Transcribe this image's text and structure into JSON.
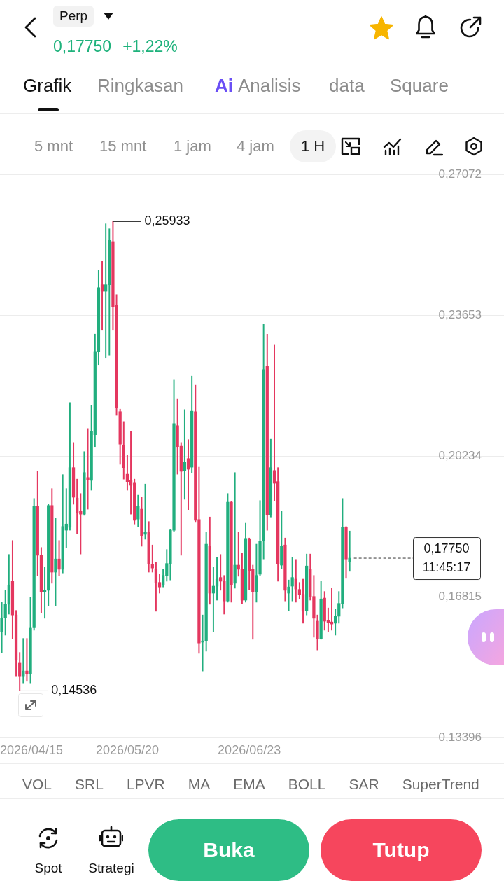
{
  "chart_data": {
    "type": "candlestick",
    "x": [
      "2026-04-15",
      "2026-04-16",
      "2026-04-17",
      "2026-04-18",
      "2026-04-19",
      "2026-04-20",
      "2026-04-21",
      "2026-04-22",
      "2026-04-23",
      "2026-04-24",
      "2026-04-25",
      "2026-04-26",
      "2026-04-27",
      "2026-04-28",
      "2026-04-29",
      "2026-04-30",
      "2026-05-01",
      "2026-05-02",
      "2026-05-03",
      "2026-05-04",
      "2026-05-05",
      "2026-05-06",
      "2026-05-07",
      "2026-05-08",
      "2026-05-09",
      "2026-05-10",
      "2026-05-11",
      "2026-05-12",
      "2026-05-13",
      "2026-05-14",
      "2026-05-15",
      "2026-05-16",
      "2026-05-17",
      "2026-05-18",
      "2026-05-19",
      "2026-05-20",
      "2026-05-21",
      "2026-05-22",
      "2026-05-23",
      "2026-05-24",
      "2026-05-25",
      "2026-05-26",
      "2026-05-27",
      "2026-05-28",
      "2026-05-29",
      "2026-05-30",
      "2026-05-31",
      "2026-06-01",
      "2026-06-02",
      "2026-06-03",
      "2026-06-04",
      "2026-06-05",
      "2026-06-06",
      "2026-06-07",
      "2026-06-08",
      "2026-06-09",
      "2026-06-10",
      "2026-06-11",
      "2026-06-12",
      "2026-06-13",
      "2026-06-14",
      "2026-06-15",
      "2026-06-16",
      "2026-06-17",
      "2026-06-18",
      "2026-06-19",
      "2026-06-20",
      "2026-06-21",
      "2026-06-22",
      "2026-06-23",
      "2026-06-24",
      "2026-06-25",
      "2026-06-26",
      "2026-06-27",
      "2026-06-28",
      "2026-06-29",
      "2026-06-30",
      "2026-07-01",
      "2026-07-02",
      "2026-07-03",
      "2026-07-04",
      "2026-07-05",
      "2026-07-06",
      "2026-07-07",
      "2026-07-08",
      "2026-07-09",
      "2026-07-10",
      "2026-07-11",
      "2026-07-12",
      "2026-07-13",
      "2026-07-14",
      "2026-07-15",
      "2026-07-16",
      "2026-07-17",
      "2026-07-18",
      "2026-07-19",
      "2026-07-20",
      "2026-07-21"
    ],
    "ohlc": [
      [
        0.1597,
        0.1668,
        0.1546,
        0.163
      ],
      [
        0.163,
        0.1697,
        0.1588,
        0.1663
      ],
      [
        0.1663,
        0.1784,
        0.1639,
        0.171
      ],
      [
        0.1719,
        0.1818,
        0.158,
        0.1637
      ],
      [
        0.1637,
        0.1648,
        0.1489,
        0.1527
      ],
      [
        0.152,
        0.1546,
        0.14536,
        0.1489
      ],
      [
        0.1489,
        0.158,
        0.1472,
        0.1501
      ],
      [
        0.1501,
        0.158,
        0.1476,
        0.1494
      ],
      [
        0.1494,
        0.168,
        0.1472,
        0.1605
      ],
      [
        0.1606,
        0.192,
        0.16,
        0.1901
      ],
      [
        0.1901,
        0.1986,
        0.1733,
        0.1782
      ],
      [
        0.1782,
        0.1801,
        0.1642,
        0.1694
      ],
      [
        0.1694,
        0.1753,
        0.1629,
        0.1697
      ],
      [
        0.1697,
        0.1906,
        0.1659,
        0.1903
      ],
      [
        0.1903,
        0.1944,
        0.1714,
        0.1741
      ],
      [
        0.1741,
        0.1872,
        0.1659,
        0.1773
      ],
      [
        0.1773,
        0.1818,
        0.1733,
        0.1748
      ],
      [
        0.1748,
        0.1978,
        0.1739,
        0.1852
      ],
      [
        0.1843,
        0.1944,
        0.1801,
        0.1858
      ],
      [
        0.185,
        0.2153,
        0.1843,
        0.1995
      ],
      [
        0.1995,
        0.2056,
        0.1906,
        0.1923
      ],
      [
        0.1921,
        0.1967,
        0.1835,
        0.1886
      ],
      [
        0.1889,
        0.1932,
        0.1785,
        0.1882
      ],
      [
        0.1882,
        0.2034,
        0.1879,
        0.1983
      ],
      [
        0.1971,
        0.209,
        0.1894,
        0.1966
      ],
      [
        0.1964,
        0.2146,
        0.194,
        0.2083
      ],
      [
        0.2075,
        0.2319,
        0.2046,
        0.2277
      ],
      [
        0.2277,
        0.2474,
        0.2245,
        0.2432
      ],
      [
        0.2439,
        0.2496,
        0.233,
        0.2423
      ],
      [
        0.2423,
        0.2587,
        0.2262,
        0.2439
      ],
      [
        0.2439,
        0.2575,
        0.2268,
        0.2547
      ],
      [
        0.2544,
        0.25933,
        0.233,
        0.2386
      ],
      [
        0.2389,
        0.2415,
        0.2122,
        0.2141
      ],
      [
        0.2131,
        0.2137,
        0.2003,
        0.2052
      ],
      [
        0.2049,
        0.2107,
        0.1967,
        0.1995
      ],
      [
        0.1979,
        0.2025,
        0.194,
        0.1961
      ],
      [
        0.1964,
        0.2083,
        0.1882,
        0.1952
      ],
      [
        0.1959,
        0.1967,
        0.1858,
        0.1867
      ],
      [
        0.187,
        0.1928,
        0.1852,
        0.1901
      ],
      [
        0.1894,
        0.1923,
        0.1804,
        0.183
      ],
      [
        0.1833,
        0.1955,
        0.1821,
        0.1838
      ],
      [
        0.1838,
        0.1864,
        0.1741,
        0.1762
      ],
      [
        0.176,
        0.1807,
        0.1741,
        0.1751
      ],
      [
        0.1749,
        0.1765,
        0.1646,
        0.1716
      ],
      [
        0.1716,
        0.1736,
        0.169,
        0.1705
      ],
      [
        0.171,
        0.1749,
        0.1705,
        0.1733
      ],
      [
        0.1733,
        0.1796,
        0.1719,
        0.1762
      ],
      [
        0.1762,
        0.1845,
        0.1722,
        0.1843
      ],
      [
        0.1843,
        0.2209,
        0.184,
        0.2102
      ],
      [
        0.2097,
        0.2161,
        0.1979,
        0.2046
      ],
      [
        0.2047,
        0.2056,
        0.1782,
        0.1986
      ],
      [
        0.1988,
        0.2136,
        0.1918,
        0.2008
      ],
      [
        0.2017,
        0.2063,
        0.1893,
        0.1991
      ],
      [
        0.1996,
        0.2217,
        0.1983,
        0.2132
      ],
      [
        0.2131,
        0.2195,
        0.1862,
        0.1867
      ],
      [
        0.1869,
        0.1996,
        0.1544,
        0.1569
      ],
      [
        0.1571,
        0.1637,
        0.1501,
        0.1574
      ],
      [
        0.1574,
        0.1838,
        0.1549,
        0.1809
      ],
      [
        0.1805,
        0.1875,
        0.1663,
        0.169
      ],
      [
        0.169,
        0.1753,
        0.1597,
        0.1707
      ],
      [
        0.1707,
        0.1777,
        0.1673,
        0.1724
      ],
      [
        0.1728,
        0.1784,
        0.1697,
        0.1719
      ],
      [
        0.1719,
        0.1733,
        0.1639,
        0.1671
      ],
      [
        0.1671,
        0.1932,
        0.1668,
        0.1911
      ],
      [
        0.1911,
        0.1914,
        0.1668,
        0.171
      ],
      [
        0.1714,
        0.1983,
        0.1702,
        0.1758
      ],
      [
        0.1758,
        0.1838,
        0.1731,
        0.1748
      ],
      [
        0.1748,
        0.1787,
        0.1665,
        0.1673
      ],
      [
        0.1673,
        0.186,
        0.1668,
        0.1823
      ],
      [
        0.1821,
        0.1824,
        0.1699,
        0.1745
      ],
      [
        0.1748,
        0.1758,
        0.1578,
        0.1694
      ],
      [
        0.1694,
        0.1809,
        0.1668,
        0.1733
      ],
      [
        0.1736,
        0.1915,
        0.1733,
        0.1816
      ],
      [
        0.1818,
        0.2343,
        0.1773,
        0.2233
      ],
      [
        0.2241,
        0.2319,
        0.1843,
        0.1881
      ],
      [
        0.1881,
        0.2064,
        0.1875,
        0.1995
      ],
      [
        0.1988,
        0.2294,
        0.1915,
        0.1957
      ],
      [
        0.1961,
        0.1995,
        0.1719,
        0.1762
      ],
      [
        0.1758,
        0.1889,
        0.1749,
        0.1804
      ],
      [
        0.1807,
        0.1824,
        0.1671,
        0.1697
      ],
      [
        0.169,
        0.1722,
        0.1648,
        0.1705
      ],
      [
        0.1707,
        0.1777,
        0.1671,
        0.1728
      ],
      [
        0.1724,
        0.1772,
        0.1668,
        0.17
      ],
      [
        0.1699,
        0.1716,
        0.1676,
        0.1687
      ],
      [
        0.1687,
        0.1724,
        0.1617,
        0.1646
      ],
      [
        0.1648,
        0.1785,
        0.1637,
        0.1756
      ],
      [
        0.1749,
        0.1785,
        0.1673,
        0.1682
      ],
      [
        0.1682,
        0.1733,
        0.1583,
        0.1629
      ],
      [
        0.1622,
        0.1637,
        0.1552,
        0.158
      ],
      [
        0.158,
        0.1719,
        0.1578,
        0.1676
      ],
      [
        0.1678,
        0.1694,
        0.16,
        0.1622
      ],
      [
        0.1624,
        0.1654,
        0.1597,
        0.1619
      ],
      [
        0.162,
        0.1702,
        0.16,
        0.1615
      ],
      [
        0.1617,
        0.1651,
        0.1588,
        0.1634
      ],
      [
        0.1634,
        0.1694,
        0.1617,
        0.1665
      ],
      [
        0.1665,
        0.192,
        0.1654,
        0.185
      ],
      [
        0.185,
        0.1852,
        0.1726,
        0.1773
      ],
      [
        0.1767,
        0.1841,
        0.1743,
        0.1775
      ]
    ],
    "colors": [
      "#21ae7e",
      "#21ae7e",
      "#21ae7e",
      "#e4375f",
      "#e4375f",
      "#e4375f",
      "#21ae7e",
      "#e4375f",
      "#21ae7e",
      "#21ae7e",
      "#e4375f",
      "#e4375f",
      "#21ae7e",
      "#21ae7e",
      "#e4375f",
      "#21ae7e",
      "#e4375f",
      "#21ae7e",
      "#21ae7e",
      "#21ae7e",
      "#e4375f",
      "#e4375f",
      "#e4375f",
      "#21ae7e",
      "#e4375f",
      "#21ae7e",
      "#21ae7e",
      "#21ae7e",
      "#e4375f",
      "#21ae7e",
      "#21ae7e",
      "#e4375f",
      "#e4375f",
      "#e4375f",
      "#e4375f",
      "#e4375f",
      "#e4375f",
      "#e4375f",
      "#21ae7e",
      "#e4375f",
      "#21ae7e",
      "#e4375f",
      "#e4375f",
      "#e4375f",
      "#e4375f",
      "#21ae7e",
      "#21ae7e",
      "#21ae7e",
      "#21ae7e",
      "#e4375f",
      "#e4375f",
      "#21ae7e",
      "#e4375f",
      "#21ae7e",
      "#e4375f",
      "#e4375f",
      "#21ae7e",
      "#21ae7e",
      "#e4375f",
      "#21ae7e",
      "#21ae7e",
      "#e4375f",
      "#e4375f",
      "#21ae7e",
      "#e4375f",
      "#21ae7e",
      "#e4375f",
      "#e4375f",
      "#21ae7e",
      "#e4375f",
      "#e4375f",
      "#21ae7e",
      "#21ae7e",
      "#21ae7e",
      "#e4375f",
      "#21ae7e",
      "#e4375f",
      "#e4375f",
      "#21ae7e",
      "#e4375f",
      "#21ae7e",
      "#21ae7e",
      "#e4375f",
      "#e4375f",
      "#e4375f",
      "#21ae7e",
      "#e4375f",
      "#e4375f",
      "#e4375f",
      "#21ae7e",
      "#e4375f",
      "#e4375f",
      "#e4375f",
      "#21ae7e",
      "#21ae7e",
      "#21ae7e",
      "#e4375f",
      "#21ae7e"
    ],
    "xlim": [
      "2026-04-14T12:00",
      "2026-09-02"
    ],
    "xticks": [
      {
        "value": "2026-04-15",
        "label": "2026/04/15"
      },
      {
        "value": "2026-05-20",
        "label": "2026/05/20"
      },
      {
        "value": "2026-06-23",
        "label": "2026/06/23"
      }
    ],
    "ylim": [
      0.13396,
      0.27072
    ],
    "yticks": [
      {
        "value": 0.13396,
        "label": "0,13396"
      },
      {
        "value": 0.16815,
        "label": "0,16815"
      },
      {
        "value": 0.20234,
        "label": "0,20234"
      },
      {
        "value": 0.23653,
        "label": "0,23653"
      },
      {
        "value": 0.27072,
        "label": "0,27072"
      }
    ],
    "grid": "y",
    "ref_lines": [
      {
        "axis": "y",
        "value": 0.1775,
        "label": "0,17750",
        "line_style": "dashed"
      }
    ],
    "annotations": [
      "Perp",
      "0,17750",
      "+1,22%",
      "Grafik",
      "Ringkasan",
      "Ai",
      "Analisis",
      "data",
      "Square",
      "5 mnt",
      "15 mnt",
      "1 jam",
      "4 jam",
      "1 H",
      {
        "text": "0,25933",
        "x": "2026-05-16",
        "y": 0.25933
      },
      {
        "text": "0,14536",
        "x": "2026-04-20",
        "y": 0.14536
      },
      "11:45:17",
      "VOL",
      "SRL",
      "LPVR",
      "MA",
      "EMA",
      "BOLL",
      "SAR",
      "SuperTrend",
      "Spot",
      "Strategi",
      "Buka",
      "Tutup"
    ]
  }
}
